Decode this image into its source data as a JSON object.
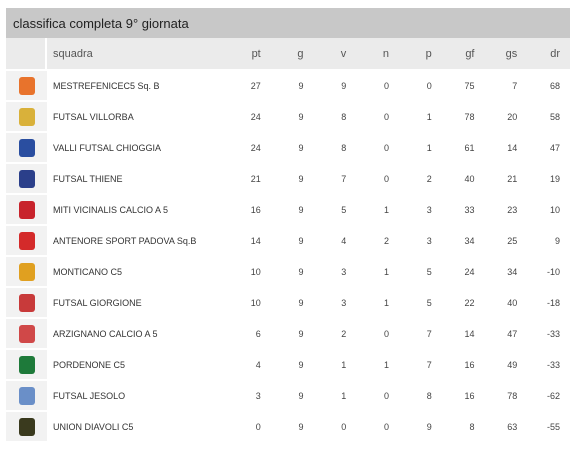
{
  "title": "classifica completa 9° giornata",
  "headers": {
    "team": "squadra",
    "pt": "pt",
    "g": "g",
    "v": "v",
    "n": "n",
    "p": "p",
    "gf": "gf",
    "gs": "gs",
    "dr": "dr"
  },
  "rows": [
    {
      "team": "MESTREFENICEC5 Sq. B",
      "pt": "27",
      "g": "9",
      "v": "9",
      "n": "0",
      "p": "0",
      "gf": "75",
      "gs": "7",
      "dr": "68",
      "logo_icon": "mestre-logo-icon",
      "logo_color": "#e8732c"
    },
    {
      "team": "FUTSAL VILLORBA",
      "pt": "24",
      "g": "9",
      "v": "8",
      "n": "0",
      "p": "1",
      "gf": "78",
      "gs": "20",
      "dr": "58",
      "logo_icon": "villorba-logo-icon",
      "logo_color": "#d9b13a"
    },
    {
      "team": "VALLI FUTSAL CHIOGGIA",
      "pt": "24",
      "g": "9",
      "v": "8",
      "n": "0",
      "p": "1",
      "gf": "61",
      "gs": "14",
      "dr": "47",
      "logo_icon": "chioggia-logo-icon",
      "logo_color": "#2a4ea0"
    },
    {
      "team": "FUTSAL THIENE",
      "pt": "21",
      "g": "9",
      "v": "7",
      "n": "0",
      "p": "2",
      "gf": "40",
      "gs": "21",
      "dr": "19",
      "logo_icon": "thiene-logo-icon",
      "logo_color": "#2b3f8a"
    },
    {
      "team": "MITI VICINALIS CALCIO A 5",
      "pt": "16",
      "g": "9",
      "v": "5",
      "n": "1",
      "p": "3",
      "gf": "33",
      "gs": "23",
      "dr": "10",
      "logo_icon": "miti-logo-icon",
      "logo_color": "#c8232c"
    },
    {
      "team": "ANTENORE SPORT PADOVA Sq.B",
      "pt": "14",
      "g": "9",
      "v": "4",
      "n": "2",
      "p": "3",
      "gf": "34",
      "gs": "25",
      "dr": "9",
      "logo_icon": "antenore-logo-icon",
      "logo_color": "#d42a2a"
    },
    {
      "team": "MONTICANO C5",
      "pt": "10",
      "g": "9",
      "v": "3",
      "n": "1",
      "p": "5",
      "gf": "24",
      "gs": "34",
      "dr": "-10",
      "logo_icon": "monticano-logo-icon",
      "logo_color": "#e0a020"
    },
    {
      "team": "FUTSAL GIORGIONE",
      "pt": "10",
      "g": "9",
      "v": "3",
      "n": "1",
      "p": "5",
      "gf": "22",
      "gs": "40",
      "dr": "-18",
      "logo_icon": "giorgione-logo-icon",
      "logo_color": "#c83a3a"
    },
    {
      "team": "ARZIGNANO CALCIO A 5",
      "pt": "6",
      "g": "9",
      "v": "2",
      "n": "0",
      "p": "7",
      "gf": "14",
      "gs": "47",
      "dr": "-33",
      "logo_icon": "arzignano-logo-icon",
      "logo_color": "#d04848"
    },
    {
      "team": "PORDENONE C5",
      "pt": "4",
      "g": "9",
      "v": "1",
      "n": "1",
      "p": "7",
      "gf": "16",
      "gs": "49",
      "dr": "-33",
      "logo_icon": "pordenone-logo-icon",
      "logo_color": "#1e7a3a"
    },
    {
      "team": "FUTSAL JESOLO",
      "pt": "3",
      "g": "9",
      "v": "1",
      "n": "0",
      "p": "8",
      "gf": "16",
      "gs": "78",
      "dr": "-62",
      "logo_icon": "jesolo-logo-icon",
      "logo_color": "#6a8fc8"
    },
    {
      "team": "UNION DIAVOLI C5",
      "pt": "0",
      "g": "9",
      "v": "0",
      "n": "0",
      "p": "9",
      "gf": "8",
      "gs": "63",
      "dr": "-55",
      "logo_icon": "diavoli-logo-icon",
      "logo_color": "#3a3a1e"
    }
  ]
}
